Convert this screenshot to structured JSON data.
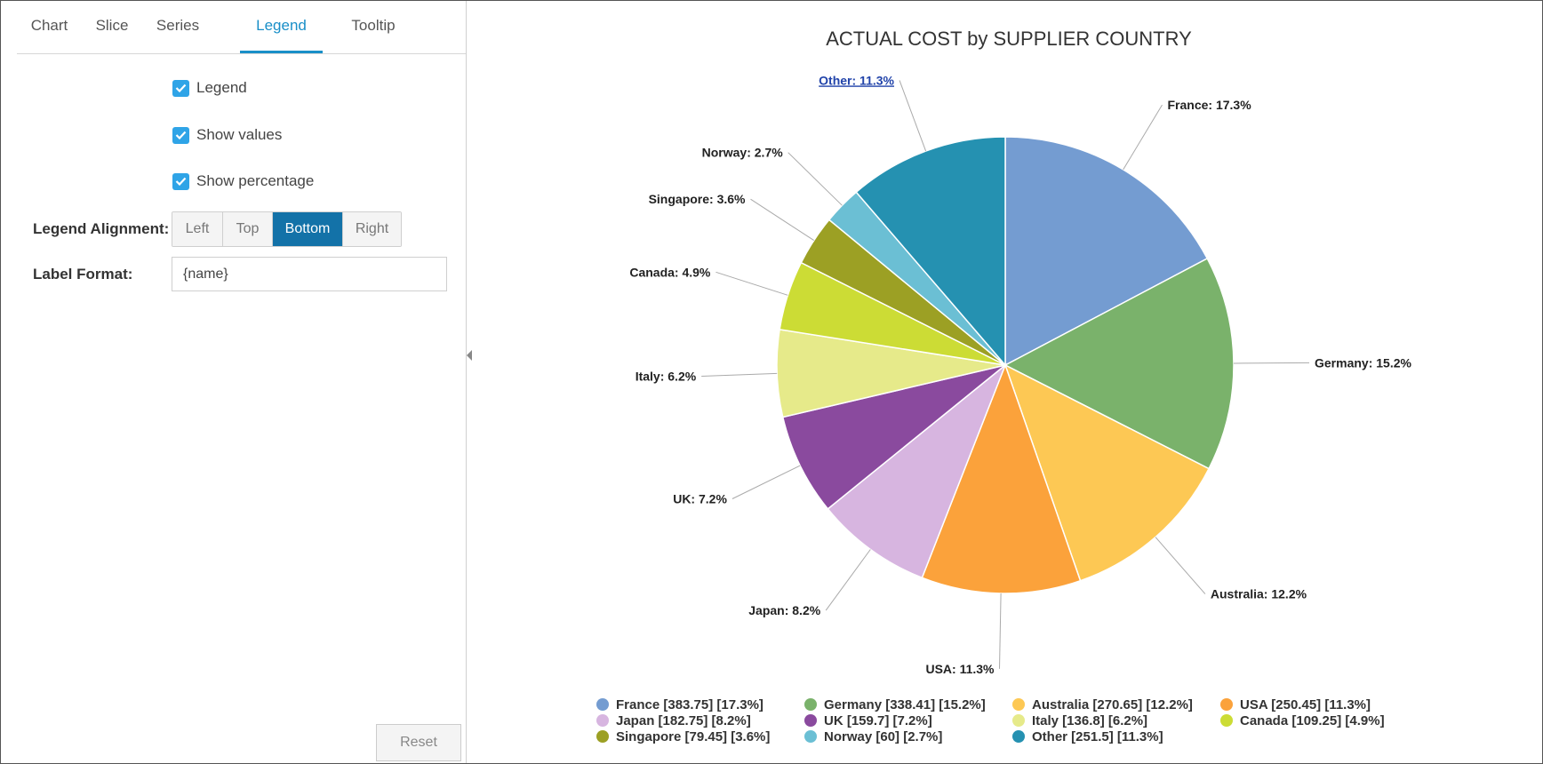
{
  "tabs": [
    {
      "label": "Chart",
      "active": false
    },
    {
      "label": "Slice",
      "active": false
    },
    {
      "label": "Series",
      "active": false
    },
    {
      "label": "Legend",
      "active": true
    },
    {
      "label": "Tooltip",
      "active": false
    }
  ],
  "legend_panel": {
    "legend_checkbox": {
      "label": "Legend",
      "checked": true
    },
    "show_values_checkbox": {
      "label": "Show values",
      "checked": true
    },
    "show_percentage_checkbox": {
      "label": "Show percentage",
      "checked": true
    },
    "alignment": {
      "label": "Legend Alignment:",
      "options": [
        "Left",
        "Top",
        "Bottom",
        "Right"
      ],
      "selected": "Bottom"
    },
    "label_format": {
      "label": "Label Format:",
      "value": "{name}"
    },
    "reset_label": "Reset"
  },
  "colors": {
    "accent": "#1a8fc8",
    "checkbox": "#2fa4e7",
    "selected_button": "#1372a8"
  },
  "chart_data": {
    "type": "pie",
    "title": "ACTUAL COST by SUPPLIER COUNTRY",
    "slices": [
      {
        "name": "France",
        "value": 383.75,
        "percent": 17.3,
        "color": "#749cd1",
        "label": "France: 17.3%",
        "legend": "France [383.75] [17.3%]"
      },
      {
        "name": "Germany",
        "value": 338.41,
        "percent": 15.2,
        "color": "#7ab26b",
        "label": "Germany: 15.2%",
        "legend": "Germany [338.41] [15.2%]"
      },
      {
        "name": "Australia",
        "value": 270.65,
        "percent": 12.2,
        "color": "#fdc854",
        "label": "Australia: 12.2%",
        "legend": "Australia [270.65] [12.2%]"
      },
      {
        "name": "USA",
        "value": 250.45,
        "percent": 11.3,
        "color": "#fba23b",
        "label": "USA: 11.3%",
        "legend": "USA [250.45] [11.3%]"
      },
      {
        "name": "Japan",
        "value": 182.75,
        "percent": 8.2,
        "color": "#d7b5e0",
        "label": "Japan: 8.2%",
        "legend": "Japan [182.75] [8.2%]"
      },
      {
        "name": "UK",
        "value": 159.7,
        "percent": 7.2,
        "color": "#8a4a9e",
        "label": "UK: 7.2%",
        "legend": "UK [159.7] [7.2%]"
      },
      {
        "name": "Italy",
        "value": 136.8,
        "percent": 6.2,
        "color": "#e6ea8a",
        "label": "Italy: 6.2%",
        "legend": "Italy [136.8] [6.2%]"
      },
      {
        "name": "Canada",
        "value": 109.25,
        "percent": 4.9,
        "color": "#ccdc35",
        "label": "Canada: 4.9%",
        "legend": "Canada [109.25] [4.9%]"
      },
      {
        "name": "Singapore",
        "value": 79.45,
        "percent": 3.6,
        "color": "#9ca024",
        "label": "Singapore: 3.6%",
        "legend": "Singapore [79.45] [3.6%]"
      },
      {
        "name": "Norway",
        "value": 60,
        "percent": 2.7,
        "color": "#6bbfd4",
        "label": "Norway: 2.7%",
        "legend": "Norway [60] [2.7%]"
      },
      {
        "name": "Other",
        "value": 251.5,
        "percent": 11.3,
        "color": "#2591b1",
        "label": "Other: 11.3%",
        "legend": "Other [251.5] [11.3%]"
      }
    ],
    "legend_placement": "bottom"
  }
}
